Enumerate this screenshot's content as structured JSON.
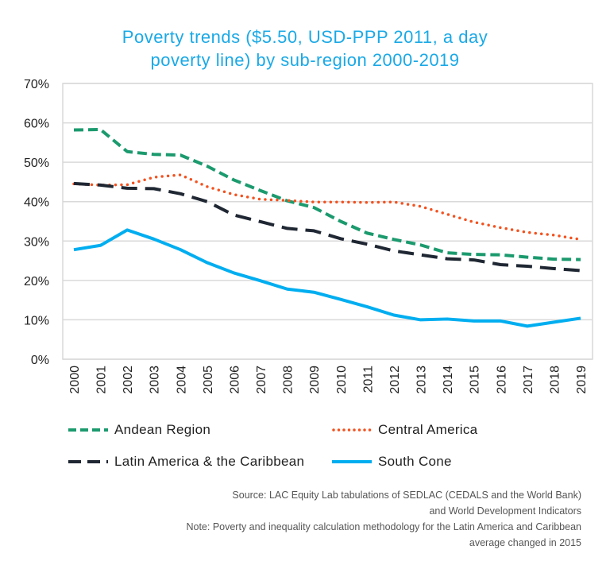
{
  "chart_data": {
    "type": "line",
    "title": "Poverty trends ($5.50, USD-PPP 2011, a day poverty line) by sub-region 2000-2019",
    "title_lines": [
      "Poverty trends ($5.50, USD-PPP 2011, a day",
      "poverty line) by sub-region 2000-2019"
    ],
    "x": [
      "2000",
      "2001",
      "2002",
      "2003",
      "2004",
      "2005",
      "2006",
      "2007",
      "2008",
      "2009",
      "2010",
      "2011",
      "2012",
      "2013",
      "2014",
      "2015",
      "2016",
      "2017",
      "2018",
      "2019"
    ],
    "ylim": [
      0,
      70
    ],
    "yticks": [
      "0%",
      "10%",
      "20%",
      "30%",
      "40%",
      "50%",
      "60%",
      "70%"
    ],
    "grid": true,
    "legend_placement": "bottom",
    "series": [
      {
        "name": "Andean Region",
        "color": "#1b9a6e",
        "style": "dashed",
        "values": [
          58.2,
          58.3,
          52.7,
          52.0,
          51.8,
          49.0,
          45.5,
          42.8,
          40.2,
          38.5,
          35.0,
          32.0,
          30.4,
          29.0,
          27.0,
          26.6,
          26.5,
          25.9,
          25.4,
          25.3
        ]
      },
      {
        "name": "Central America",
        "color": "#f4511e",
        "style": "dotted",
        "values": [
          44.5,
          44.2,
          44.3,
          46.2,
          46.8,
          43.8,
          41.8,
          40.6,
          40.3,
          39.9,
          39.9,
          39.8,
          39.9,
          38.8,
          36.8,
          34.8,
          33.4,
          32.2,
          31.5,
          30.4
        ]
      },
      {
        "name": "Latin America & the Caribbean",
        "color": "#1f2733",
        "style": "longdash",
        "values": [
          44.6,
          44.2,
          43.4,
          43.3,
          42.0,
          40.0,
          36.6,
          34.9,
          33.2,
          32.6,
          30.6,
          29.2,
          27.5,
          26.5,
          25.5,
          25.2,
          24.0,
          23.6,
          23.0,
          22.5
        ]
      },
      {
        "name": "South Cone",
        "color": "#00aef0",
        "style": "solid",
        "values": [
          27.8,
          28.9,
          32.8,
          30.5,
          27.8,
          24.5,
          21.9,
          19.9,
          17.8,
          17.0,
          15.2,
          13.3,
          11.2,
          10.0,
          10.2,
          9.7,
          9.7,
          8.4,
          9.4,
          10.4
        ]
      }
    ]
  },
  "notes": [
    "Source: LAC Equity Lab tabulations of SEDLAC (CEDALS and the World Bank)",
    "and World Development Indicators",
    "Note: Poverty and inequality calculation methodology for the Latin America and Caribbean",
    "average changed in 2015"
  ]
}
